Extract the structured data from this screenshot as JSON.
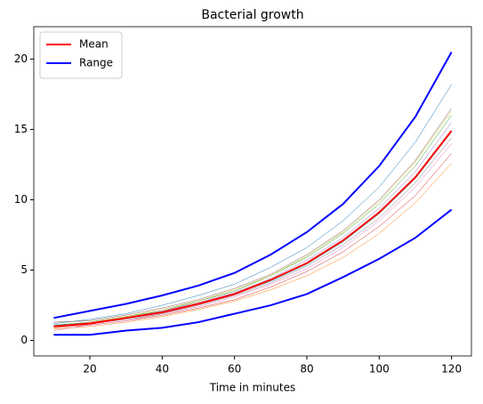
{
  "chart_data": {
    "type": "line",
    "title": "Bacterial growth",
    "xlabel": "Time in minutes",
    "x": [
      10,
      20,
      30,
      40,
      50,
      60,
      70,
      80,
      90,
      100,
      110,
      120
    ],
    "xlim": [
      4.5,
      125.5
    ],
    "xticks": [
      20,
      40,
      60,
      80,
      100,
      120
    ],
    "ylim": [
      -1.1,
      22.3
    ],
    "yticks": [
      0,
      5,
      10,
      15,
      20
    ],
    "legend": "upper left",
    "traces": [
      {
        "color": "#1f77b4",
        "values": [
          1.2,
          1.5,
          1.9,
          2.5,
          3.2,
          4.0,
          5.2,
          6.6,
          8.5,
          10.9,
          14.1,
          18.2
        ]
      },
      {
        "color": "#ff7f0e",
        "values": [
          0.8,
          1.0,
          1.3,
          1.7,
          2.2,
          2.8,
          3.6,
          4.6,
          5.9,
          7.6,
          9.8,
          12.6
        ]
      },
      {
        "color": "#2ca02c",
        "values": [
          1.1,
          1.3,
          1.7,
          2.1,
          2.8,
          3.5,
          4.6,
          5.9,
          7.6,
          9.7,
          12.4,
          16.0
        ]
      },
      {
        "color": "#d62728",
        "values": [
          0.9,
          1.1,
          1.4,
          1.8,
          2.3,
          2.9,
          3.8,
          4.9,
          6.3,
          8.1,
          10.3,
          13.3
        ]
      },
      {
        "color": "#9467bd",
        "values": [
          1.0,
          1.3,
          1.6,
          2.1,
          2.7,
          3.4,
          4.4,
          5.7,
          7.3,
          9.4,
          12.0,
          15.5
        ]
      },
      {
        "color": "#8c564b",
        "values": [
          1.3,
          1.4,
          1.8,
          2.3,
          2.9,
          3.7,
          4.7,
          6.1,
          7.8,
          10.0,
          12.8,
          16.5
        ]
      },
      {
        "color": "#e377c2",
        "values": [
          0.7,
          1.1,
          1.4,
          1.9,
          2.4,
          3.1,
          4.0,
          5.1,
          6.6,
          8.5,
          10.9,
          14.0
        ]
      },
      {
        "color": "#7f7f7f",
        "values": [
          1.0,
          1.2,
          1.5,
          1.9,
          2.5,
          3.2,
          4.1,
          5.3,
          6.8,
          8.7,
          11.2,
          14.4
        ]
      },
      {
        "color": "#bcbd22",
        "values": [
          0.9,
          1.3,
          1.7,
          2.2,
          2.8,
          3.6,
          4.6,
          6.0,
          7.7,
          9.9,
          12.7,
          16.3
        ]
      },
      {
        "color": "#17becf",
        "values": [
          1.1,
          1.2,
          1.6,
          2.0,
          2.6,
          3.3,
          4.2,
          5.4,
          7.0,
          9.0,
          11.5,
          14.8
        ]
      }
    ],
    "series": [
      {
        "name": "Mean",
        "color": "#ff0000",
        "values": [
          1.0,
          1.2,
          1.6,
          2.0,
          2.6,
          3.3,
          4.3,
          5.5,
          7.1,
          9.1,
          11.6,
          14.9
        ]
      }
    ],
    "range": {
      "name": "Range",
      "color": "#0000ff",
      "upper": [
        1.6,
        2.1,
        2.6,
        3.2,
        3.9,
        4.8,
        6.1,
        7.7,
        9.7,
        12.4,
        15.9,
        20.5
      ],
      "lower": [
        0.4,
        0.4,
        0.7,
        0.9,
        1.3,
        1.9,
        2.5,
        3.3,
        4.5,
        5.8,
        7.3,
        9.3
      ]
    }
  }
}
